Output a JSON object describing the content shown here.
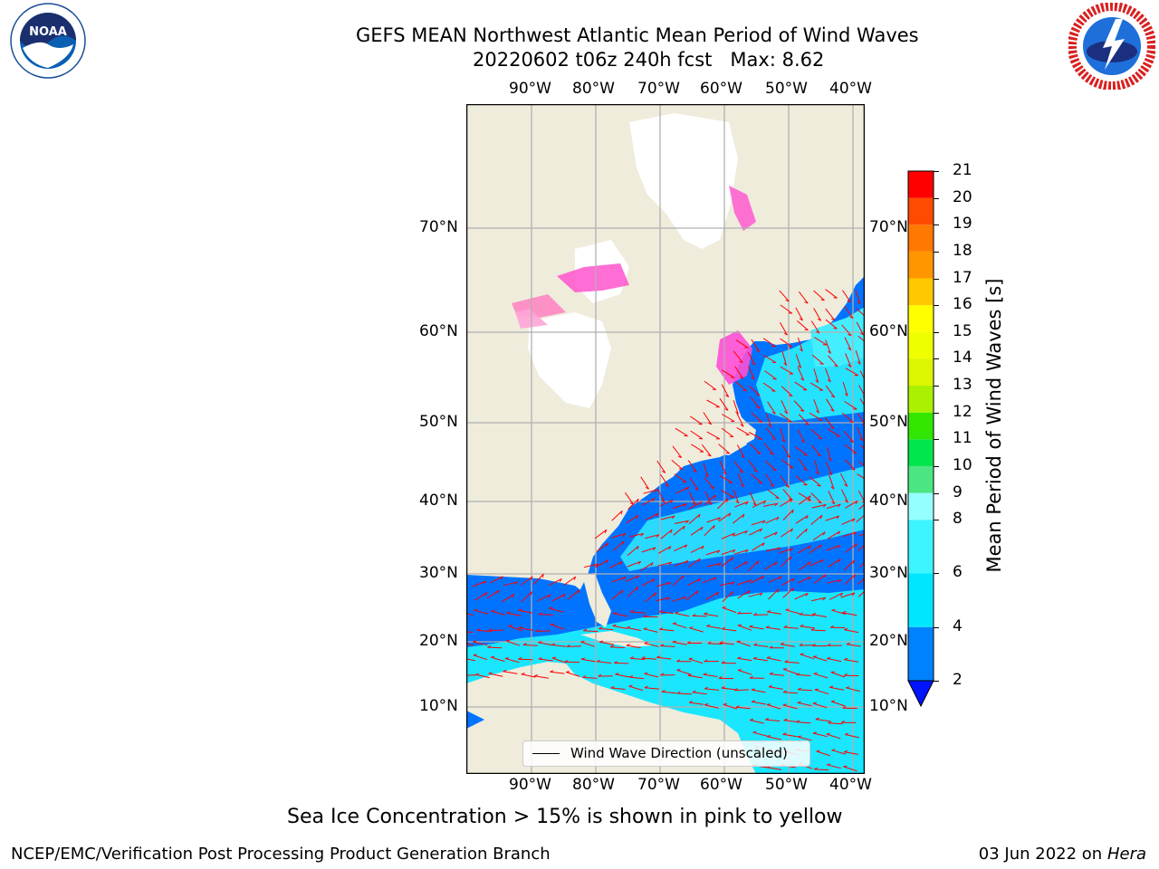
{
  "title": {
    "line1": "GEFS MEAN Northwest Atlantic Mean Period of Wind Waves",
    "line2": "20220602 t06z 240h fcst   Max: 8.62"
  },
  "logos": {
    "noara": {
      "text": "NOAA",
      "ring_text": "NATIONAL OCEANIC AND ATMOSPHERIC ADMINISTRATION · U.S. DEPARTMENT OF COMMERCE"
    },
    "nws": {
      "ring_text": "NATIONAL WEATHER SERVICE"
    }
  },
  "map": {
    "lon_ticks": [
      "90°W",
      "80°W",
      "70°W",
      "60°W",
      "50°W",
      "40°W"
    ],
    "lat_ticks": [
      "70°N",
      "60°N",
      "50°N",
      "40°N",
      "30°N",
      "20°N",
      "10°N"
    ],
    "colors": {
      "land": "#efecdc",
      "ice": "#ffffff",
      "ocean_low": "#0080ff",
      "ocean_mid": "#19f2ff",
      "arrow": "#ff0000",
      "grid": "#b0b0b0"
    }
  },
  "legend": {
    "label": "Wind Wave Direction (unscaled)"
  },
  "colorbar": {
    "label": "Mean Period of Wind Waves [s]",
    "tick_labels": [
      "21",
      "20",
      "19",
      "18",
      "17",
      "16",
      "15",
      "14",
      "13",
      "12",
      "11",
      "10",
      "9",
      "8",
      "6",
      "4",
      "2"
    ],
    "bins": [
      {
        "from": 2,
        "to": 4,
        "color": "#0082ff"
      },
      {
        "from": 4,
        "to": 6,
        "color": "#00e6ff"
      },
      {
        "from": 6,
        "to": 8,
        "color": "#3cf5ff"
      },
      {
        "from": 8,
        "to": 9,
        "color": "#96ffff"
      },
      {
        "from": 9,
        "to": 10,
        "color": "#4be682"
      },
      {
        "from": 10,
        "to": 11,
        "color": "#00e64b"
      },
      {
        "from": 11,
        "to": 12,
        "color": "#32e600"
      },
      {
        "from": 12,
        "to": 13,
        "color": "#aaf000"
      },
      {
        "from": 13,
        "to": 14,
        "color": "#dcf500"
      },
      {
        "from": 14,
        "to": 15,
        "color": "#f0ff00"
      },
      {
        "from": 15,
        "to": 16,
        "color": "#ffff00"
      },
      {
        "from": 16,
        "to": 17,
        "color": "#ffc800"
      },
      {
        "from": 17,
        "to": 18,
        "color": "#ff9600"
      },
      {
        "from": 18,
        "to": 19,
        "color": "#ff7800"
      },
      {
        "from": 19,
        "to": 20,
        "color": "#ff4b00"
      },
      {
        "from": 20,
        "to": 21,
        "color": "#ff0000"
      }
    ],
    "extend_below_color": "#0014ff"
  },
  "footer": {
    "subtitle": "Sea Ice Concentration > 15% is shown in pink to yellow",
    "credit": "NCEP/EMC/Verification Post Processing Product Generation Branch",
    "date": "03 Jun 2022 on",
    "machine": "Hera"
  }
}
